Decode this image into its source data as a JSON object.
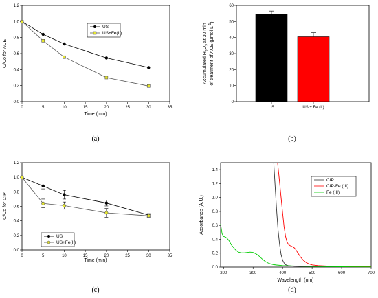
{
  "chart_data": [
    {
      "panel": "(a)",
      "type": "line",
      "xlabel": "Time (min)",
      "ylabel": "C/Co for ACE",
      "xlim": [
        0,
        35
      ],
      "ylim": [
        0,
        1.2
      ],
      "xticks": [
        "0",
        "5",
        "10",
        "15",
        "20",
        "25",
        "30",
        "35"
      ],
      "yticks": [
        "0.0",
        "0.2",
        "0.4",
        "0.6",
        "0.8",
        "1.0",
        "1.2"
      ],
      "legend_position": "top-right",
      "series": [
        {
          "name": "US",
          "x": [
            0,
            5,
            10,
            20,
            30
          ],
          "y": [
            1.0,
            0.84,
            0.72,
            0.545,
            0.425
          ],
          "marker": "filled-circle",
          "color": "#000000"
        },
        {
          "name": "US+Fe(II)",
          "x": [
            0,
            5,
            10,
            20,
            30
          ],
          "y": [
            1.0,
            0.76,
            0.555,
            0.3,
            0.195
          ],
          "marker": "yellow-square",
          "color": "#555555"
        }
      ]
    },
    {
      "panel": "(b)",
      "type": "bar",
      "categories": [
        "US",
        "US + Fe (II)"
      ],
      "values": [
        54.5,
        40.5
      ],
      "errors": [
        2.0,
        2.5
      ],
      "colors": [
        "#000000",
        "#ff0000"
      ],
      "ylabel_line1": "Accumulated H",
      "ylabel_sub": "2",
      "ylabel_mid": "O",
      "ylabel_sub2": "2",
      "ylabel_rest": " at 30 min",
      "ylabel_line2": "of treatment of ACE (µmol L",
      "ylabel_sup": "-1",
      "ylabel_close": ")",
      "ylim": [
        0,
        60
      ],
      "yticks": [
        "0",
        "10",
        "20",
        "30",
        "40",
        "50",
        "60"
      ]
    },
    {
      "panel": "(c)",
      "type": "line",
      "xlabel": "Time (min)",
      "ylabel": "C/Co for CIP",
      "xlim": [
        0,
        35
      ],
      "ylim": [
        0,
        1.2
      ],
      "xticks": [
        "0",
        "5",
        "10",
        "15",
        "20",
        "25",
        "30",
        "35"
      ],
      "yticks": [
        "0.0",
        "0.2",
        "0.4",
        "0.6",
        "0.8",
        "1.0",
        "1.2"
      ],
      "legend_position": "bottom-left",
      "series": [
        {
          "name": "US",
          "x": [
            0,
            5,
            10,
            20,
            30
          ],
          "y": [
            1.0,
            0.88,
            0.76,
            0.645,
            0.48
          ],
          "err": [
            0,
            0.04,
            0.06,
            0.04,
            0.02
          ],
          "marker": "filled-circle",
          "color": "#000000"
        },
        {
          "name": "US+Fe(II)",
          "x": [
            0,
            5,
            10,
            20,
            30
          ],
          "y": [
            1.0,
            0.64,
            0.61,
            0.51,
            0.47
          ],
          "err": [
            0,
            0.06,
            0.05,
            0.06,
            0.02
          ],
          "marker": "yellow-circle",
          "color": "#555555"
        }
      ]
    },
    {
      "panel": "(d)",
      "type": "line",
      "xlabel": "Wavelength (nm)",
      "ylabel": "Absorbance (A.U.)",
      "xlim": [
        190,
        700
      ],
      "ylim": [
        0,
        1.5
      ],
      "xticks": [
        "200",
        "300",
        "400",
        "500",
        "600",
        "700"
      ],
      "yticks": [
        "0.0",
        "0.2",
        "0.4",
        "0.6",
        "0.8",
        "1.0",
        "1.2",
        "1.4"
      ],
      "legend_position": "top-right",
      "series": [
        {
          "name": "CIP",
          "color": "#333333",
          "x": [
            370,
            375,
            380,
            385,
            390,
            395,
            400,
            405,
            410,
            420,
            440,
            470,
            520,
            700
          ],
          "y": [
            1.5,
            1.15,
            0.8,
            0.52,
            0.32,
            0.18,
            0.1,
            0.06,
            0.035,
            0.02,
            0.012,
            0.008,
            0.005,
            0.0
          ]
        },
        {
          "name": "CIP-Fe (III)",
          "color": "#ff0000",
          "x": [
            383,
            388,
            395,
            400,
            405,
            410,
            415,
            420,
            425,
            430,
            435,
            440,
            445,
            450,
            460,
            470,
            480,
            490,
            500,
            520,
            550,
            600,
            650,
            700
          ],
          "y": [
            1.5,
            1.3,
            1.0,
            0.78,
            0.58,
            0.44,
            0.36,
            0.325,
            0.31,
            0.3,
            0.29,
            0.275,
            0.25,
            0.215,
            0.15,
            0.1,
            0.065,
            0.045,
            0.032,
            0.022,
            0.015,
            0.01,
            0.007,
            0.005
          ]
        },
        {
          "name": "Fe (III)",
          "color": "#00cc00",
          "x": [
            190,
            195,
            200,
            205,
            210,
            215,
            220,
            225,
            230,
            240,
            250,
            260,
            270,
            280,
            290,
            300,
            310,
            320,
            330,
            340,
            350,
            360,
            370,
            380,
            400,
            450,
            500,
            600,
            700
          ],
          "y": [
            0.62,
            0.48,
            0.44,
            0.435,
            0.42,
            0.4,
            0.37,
            0.33,
            0.3,
            0.25,
            0.215,
            0.205,
            0.205,
            0.21,
            0.215,
            0.21,
            0.19,
            0.16,
            0.12,
            0.085,
            0.06,
            0.045,
            0.035,
            0.03,
            0.022,
            0.014,
            0.009,
            0.005,
            0.003
          ]
        }
      ]
    }
  ]
}
